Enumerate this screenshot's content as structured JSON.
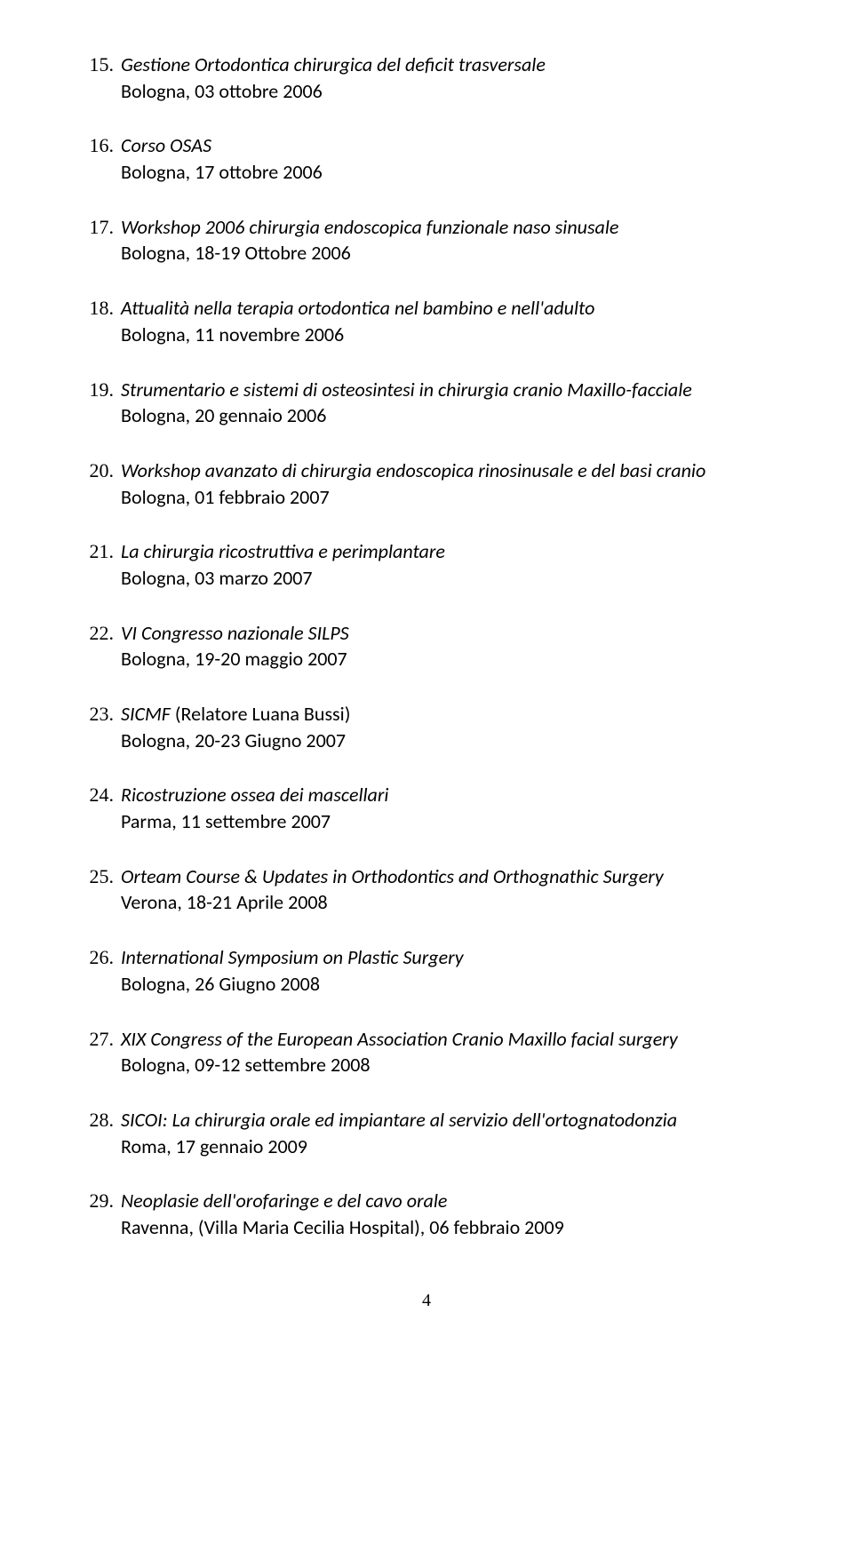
{
  "page_number": "4",
  "start_index": 15,
  "entries": [
    {
      "title": "Gestione Ortodontica chirurgica del deficit trasversale",
      "loc": "Bologna, 03 ottobre 2006"
    },
    {
      "title": "Corso OSAS",
      "loc": "Bologna, 17 ottobre 2006"
    },
    {
      "title": "Workshop 2006 chirurgia endoscopica funzionale naso sinusale",
      "loc": "Bologna, 18-19 Ottobre 2006"
    },
    {
      "title": "Attualità nella terapia ortodontica nel bambino e nell'adulto",
      "loc": "Bologna, 11 novembre 2006"
    },
    {
      "title": "Strumentario e sistemi di osteosintesi in chirurgia cranio Maxillo-facciale",
      "loc": "Bologna, 20 gennaio 2006"
    },
    {
      "title": "Workshop avanzato di chirurgia endoscopica rinosinusale e del basi cranio",
      "loc": "Bologna, 01 febbraio 2007"
    },
    {
      "title": "La chirurgia ricostruttiva e perimplantare",
      "loc": "Bologna, 03 marzo 2007"
    },
    {
      "title": "VI Congresso nazionale SILPS",
      "loc": "Bologna, 19-20 maggio 2007"
    },
    {
      "title_prefix": "SICMF ",
      "title_noital": "(Relatore Luana Bussi)",
      "loc": "Bologna, 20-23 Giugno 2007"
    },
    {
      "title": "Ricostruzione ossea dei mascellari",
      "loc": "Parma, 11 settembre 2007"
    },
    {
      "title": "Orteam Course & Updates in Orthodontics and Orthognathic Surgery",
      "loc": "Verona, 18-21 Aprile 2008"
    },
    {
      "title": "International Symposium on Plastic Surgery",
      "loc": "Bologna, 26 Giugno 2008"
    },
    {
      "title": "XIX Congress of the European Association Cranio Maxillo facial surgery",
      "loc": "Bologna, 09-12 settembre 2008"
    },
    {
      "title": "SICOI: La chirurgia orale ed impiantare al servizio dell'ortognatodonzia",
      "loc": "Roma, 17 gennaio 2009"
    },
    {
      "title": "Neoplasie dell'orofaringe e del cavo orale",
      "loc": "Ravenna, (Villa Maria Cecilia Hospital), 06 febbraio 2009"
    }
  ]
}
